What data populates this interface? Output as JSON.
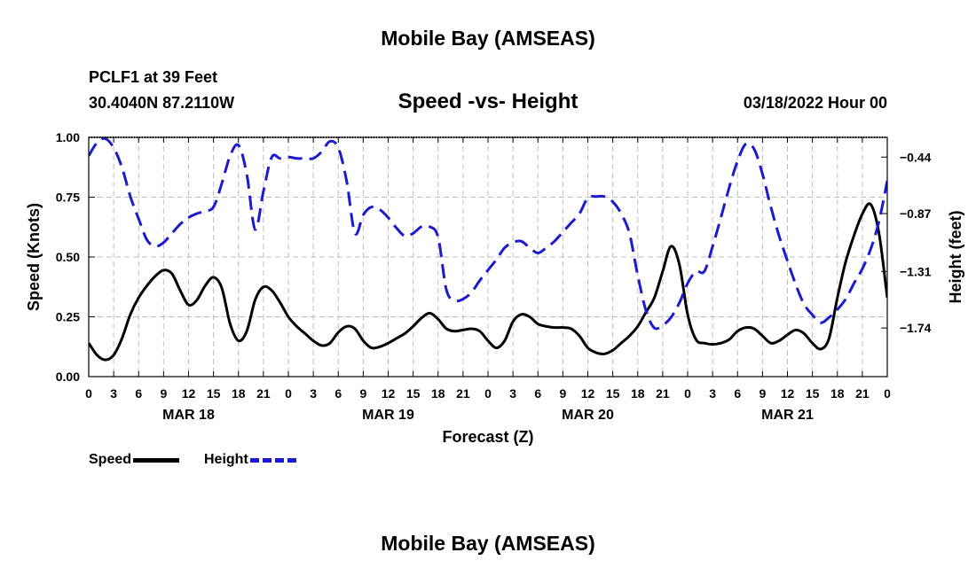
{
  "header": {
    "main_title": "Mobile Bay (AMSEAS)",
    "station": "PCLF1 at 39 Feet",
    "coords": "30.4040N  87.2110W",
    "chart_title": "Speed -vs- Height",
    "run_time": "03/18/2022 Hour 00"
  },
  "footer": {
    "title": "Mobile Bay (AMSEAS)"
  },
  "legend": {
    "speed_label": "Speed",
    "height_label": "Height"
  },
  "colors": {
    "speed": "#000000",
    "height": "#1a1ad0",
    "grid": "#bdbdbd"
  },
  "chart_data": {
    "type": "line",
    "title": "Speed -vs- Height",
    "xlabel": "Forecast (Z)",
    "ylabel": "Speed (Knots)",
    "y2label": "Height (feet)",
    "xlim": [
      0,
      96
    ],
    "ylim": [
      0,
      1
    ],
    "y2lim": [
      -2.11,
      -0.29
    ],
    "x_ticks": [
      0,
      3,
      6,
      9,
      12,
      15,
      18,
      21,
      24,
      27,
      30,
      33,
      36,
      39,
      42,
      45,
      48,
      51,
      54,
      57,
      60,
      63,
      66,
      69,
      72,
      75,
      78,
      81,
      84,
      87,
      90,
      93,
      96
    ],
    "x_tick_labels": [
      "0",
      "3",
      "6",
      "9",
      "12",
      "15",
      "18",
      "21",
      "0",
      "3",
      "6",
      "9",
      "12",
      "15",
      "18",
      "21",
      "0",
      "3",
      "6",
      "9",
      "12",
      "15",
      "18",
      "21",
      "0",
      "3",
      "6",
      "9",
      "12",
      "15",
      "18",
      "21",
      "0"
    ],
    "date_labels": [
      {
        "x": 12,
        "label": "MAR 18"
      },
      {
        "x": 36,
        "label": "MAR 19"
      },
      {
        "x": 60,
        "label": "MAR 20"
      },
      {
        "x": 84,
        "label": "MAR 21"
      }
    ],
    "y_ticks": [
      0,
      0.25,
      0.5,
      0.75,
      1.0
    ],
    "y_tick_labels": [
      "0.00",
      "0.25",
      "0.50",
      "0.75",
      "1.00"
    ],
    "y2_ticks": [
      -1.74,
      -1.31,
      -0.87,
      -0.44
    ],
    "y2_tick_labels": [
      "−1.74",
      "−1.31",
      "−0.87",
      "−0.44"
    ],
    "series": [
      {
        "name": "Speed",
        "axis": "left",
        "x": [
          0,
          1,
          2,
          3,
          4,
          5,
          6,
          7,
          8,
          9,
          10,
          11,
          12,
          13,
          14,
          15,
          16,
          17,
          18,
          19,
          20,
          21,
          22,
          23,
          24,
          25,
          26,
          27,
          28,
          29,
          30,
          31,
          32,
          33,
          34,
          35,
          36,
          37,
          38,
          39,
          40,
          41,
          42,
          43,
          44,
          45,
          46,
          47,
          48,
          49,
          50,
          51,
          52,
          53,
          54,
          55,
          56,
          57,
          58,
          59,
          60,
          61,
          62,
          63,
          64,
          65,
          66,
          67,
          68,
          69,
          70,
          71,
          72,
          73,
          74,
          75,
          76,
          77,
          78,
          79,
          80,
          81,
          82,
          83,
          84,
          85,
          86,
          87,
          88,
          89,
          90,
          91,
          92,
          93,
          94,
          95,
          96
        ],
        "values": [
          0.14,
          0.09,
          0.07,
          0.09,
          0.16,
          0.26,
          0.33,
          0.38,
          0.42,
          0.445,
          0.43,
          0.36,
          0.3,
          0.32,
          0.38,
          0.415,
          0.37,
          0.22,
          0.15,
          0.19,
          0.32,
          0.375,
          0.36,
          0.31,
          0.25,
          0.21,
          0.18,
          0.15,
          0.13,
          0.14,
          0.185,
          0.21,
          0.2,
          0.15,
          0.12,
          0.125,
          0.14,
          0.16,
          0.18,
          0.21,
          0.245,
          0.265,
          0.24,
          0.2,
          0.19,
          0.195,
          0.2,
          0.19,
          0.15,
          0.12,
          0.15,
          0.23,
          0.26,
          0.25,
          0.22,
          0.21,
          0.205,
          0.205,
          0.2,
          0.17,
          0.12,
          0.1,
          0.095,
          0.11,
          0.14,
          0.17,
          0.21,
          0.27,
          0.33,
          0.44,
          0.545,
          0.47,
          0.26,
          0.155,
          0.14,
          0.135,
          0.14,
          0.155,
          0.19,
          0.205,
          0.2,
          0.17,
          0.14,
          0.15,
          0.175,
          0.195,
          0.18,
          0.14,
          0.115,
          0.16,
          0.33,
          0.48,
          0.59,
          0.68,
          0.72,
          0.6,
          0.33
        ]
      },
      {
        "name": "Height",
        "axis": "right",
        "x": [
          0,
          1,
          2,
          3,
          4,
          5,
          6,
          7,
          8,
          9,
          10,
          11,
          12,
          13,
          14,
          15,
          16,
          17,
          18,
          19,
          20,
          21,
          22,
          23,
          24,
          25,
          26,
          27,
          28,
          29,
          30,
          31,
          32,
          33,
          34,
          35,
          36,
          37,
          38,
          39,
          40,
          41,
          42,
          43,
          44,
          45,
          46,
          47,
          48,
          49,
          50,
          51,
          52,
          53,
          54,
          55,
          56,
          57,
          58,
          59,
          60,
          61,
          62,
          63,
          64,
          65,
          66,
          67,
          68,
          69,
          70,
          71,
          72,
          73,
          74,
          75,
          76,
          77,
          78,
          79,
          80,
          81,
          82,
          83,
          84,
          85,
          86,
          87,
          88,
          89,
          90,
          91,
          92,
          93,
          94,
          95,
          96
        ],
        "values": [
          -0.43,
          -0.33,
          -0.3,
          -0.37,
          -0.52,
          -0.74,
          -0.91,
          -1.07,
          -1.12,
          -1.09,
          -1.02,
          -0.95,
          -0.9,
          -0.87,
          -0.85,
          -0.82,
          -0.64,
          -0.43,
          -0.35,
          -0.57,
          -0.99,
          -0.7,
          -0.44,
          -0.45,
          -0.44,
          -0.45,
          -0.45,
          -0.45,
          -0.4,
          -0.32,
          -0.37,
          -0.62,
          -1.02,
          -0.88,
          -0.82,
          -0.84,
          -0.9,
          -0.98,
          -1.04,
          -1.02,
          -0.97,
          -0.97,
          -1.05,
          -1.45,
          -1.53,
          -1.52,
          -1.47,
          -1.38,
          -1.3,
          -1.22,
          -1.13,
          -1.09,
          -1.08,
          -1.13,
          -1.17,
          -1.13,
          -1.08,
          -1.01,
          -0.94,
          -0.87,
          -0.75,
          -0.74,
          -0.74,
          -0.78,
          -0.87,
          -1.02,
          -1.34,
          -1.61,
          -1.74,
          -1.72,
          -1.66,
          -1.55,
          -1.4,
          -1.31,
          -1.31,
          -1.12,
          -0.9,
          -0.67,
          -0.47,
          -0.34,
          -0.38,
          -0.57,
          -0.82,
          -1.04,
          -1.23,
          -1.41,
          -1.56,
          -1.64,
          -1.7,
          -1.66,
          -1.6,
          -1.52,
          -1.4,
          -1.29,
          -1.14,
          -0.93,
          -0.62
        ]
      }
    ]
  }
}
